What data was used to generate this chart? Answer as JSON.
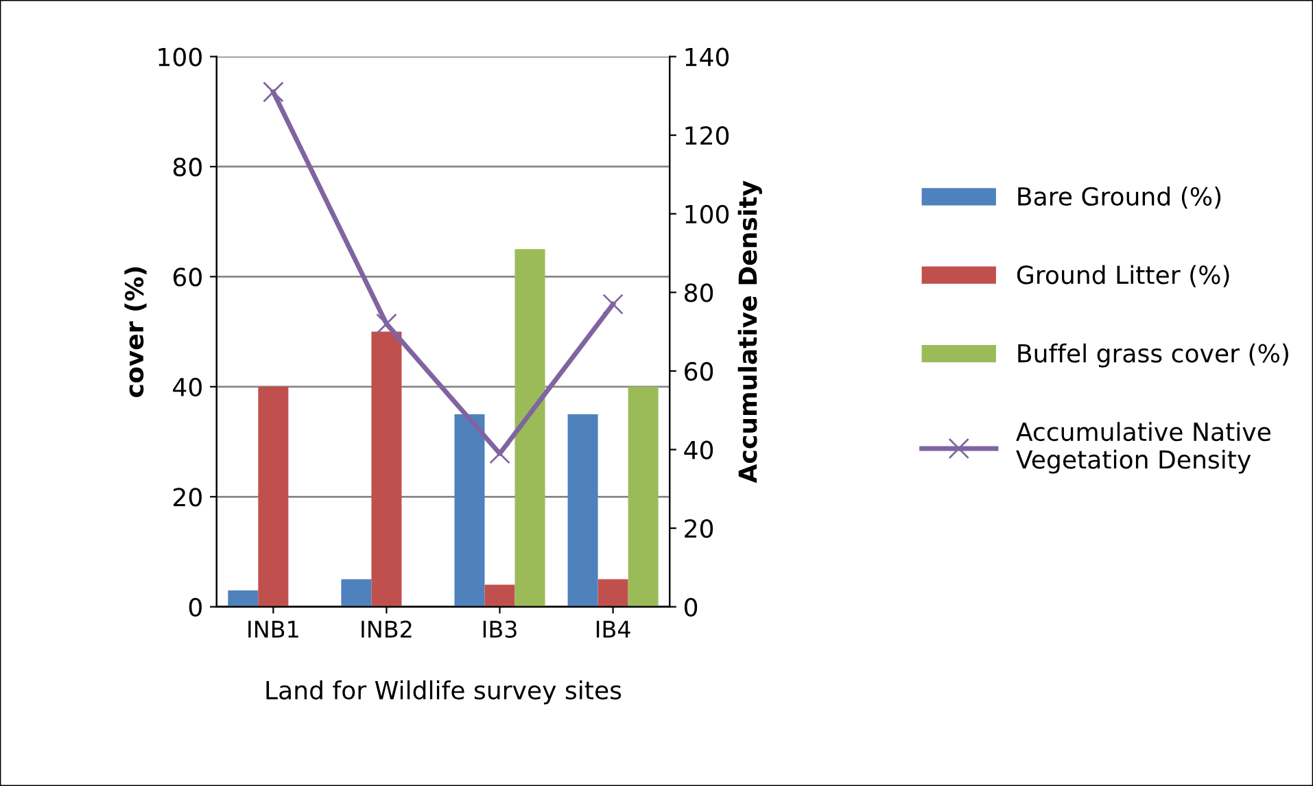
{
  "chart_data": {
    "type": "bar",
    "xlabel": "Land for Wildlife survey sites",
    "ylabel": "cover (%)",
    "y2label": "Accumulative Density",
    "categories": [
      "INB1",
      "INB2",
      "IB3",
      "IB4"
    ],
    "series": [
      {
        "name": "Bare Ground (%)",
        "color": "#4f81bd",
        "values": [
          3,
          5,
          35,
          35
        ]
      },
      {
        "name": "Ground Litter (%)",
        "color": "#c0504d",
        "values": [
          40,
          50,
          4,
          5
        ]
      },
      {
        "name": "Buffel grass cover (%)",
        "color": "#9bbb59",
        "values": [
          0,
          0,
          65,
          40
        ]
      },
      {
        "name": "Accumulative Native Vegetation Density",
        "type": "line",
        "axis": "y2",
        "color": "#8064a2",
        "marker": "cross",
        "values": [
          131,
          72,
          39,
          77
        ]
      }
    ],
    "ylim": [
      0,
      100
    ],
    "yticks": [
      0,
      20,
      40,
      60,
      80,
      100
    ],
    "y2lim": [
      0,
      140
    ],
    "y2ticks": [
      0,
      20,
      40,
      60,
      80,
      100,
      120,
      140
    ],
    "grid": "y",
    "legend": "right"
  }
}
